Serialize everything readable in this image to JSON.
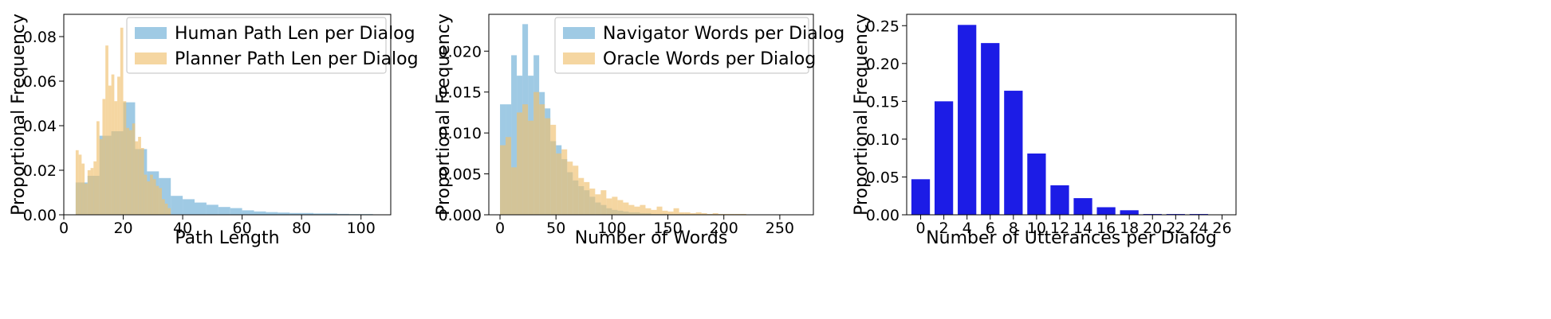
{
  "colors": {
    "blue_hist": "#6baed6",
    "orange_hist": "#f0c06e",
    "bar_blue": "#1c1ce6",
    "axis": "#000000",
    "legend_border": "#cccccc"
  },
  "chart_data": [
    {
      "type": "bar",
      "subtype": "histogram",
      "xlabel": "Path Length",
      "ylabel": "Proportional Frequency",
      "xlim": [
        0,
        110
      ],
      "ylim": [
        0,
        0.09
      ],
      "xticks": [
        0,
        20,
        40,
        60,
        80,
        100
      ],
      "yticks": [
        0.0,
        0.02,
        0.04,
        0.06,
        0.08
      ],
      "xtick_labels": [
        "0",
        "20",
        "40",
        "60",
        "80",
        "100"
      ],
      "ytick_labels": [
        "0.00",
        "0.02",
        "0.04",
        "0.06",
        "0.08"
      ],
      "legend_position": "top-right",
      "series": [
        {
          "name": "Human Path Len per Dialog",
          "color": "#6baed6",
          "bin_edges": [
            4,
            8,
            12,
            16,
            20,
            24,
            28,
            32,
            36,
            40,
            44,
            48,
            52,
            56,
            60,
            64,
            68,
            72,
            76,
            80,
            84,
            88,
            92,
            96,
            100,
            104
          ],
          "values": [
            0.0145,
            0.0175,
            0.0355,
            0.0375,
            0.0505,
            0.0295,
            0.0195,
            0.0165,
            0.0085,
            0.007,
            0.0055,
            0.0045,
            0.0035,
            0.003,
            0.002,
            0.0015,
            0.0012,
            0.001,
            0.0008,
            0.0008,
            0.0006,
            0.0006,
            0.0004,
            0.0003,
            0.0003
          ]
        },
        {
          "name": "Planner Path Len per Dialog",
          "color": "#f0c06e",
          "bin_edges": [
            4,
            5,
            6,
            7,
            8,
            9,
            10,
            11,
            12,
            13,
            14,
            15,
            16,
            17,
            18,
            19,
            20,
            21,
            22,
            23,
            24,
            25,
            26,
            27,
            28,
            29,
            30,
            31,
            32,
            33,
            34,
            35,
            36
          ],
          "values": [
            0.029,
            0.027,
            0.023,
            0.014,
            0.02,
            0.021,
            0.024,
            0.042,
            0.034,
            0.052,
            0.076,
            0.058,
            0.063,
            0.051,
            0.062,
            0.084,
            0.051,
            0.039,
            0.038,
            0.041,
            0.033,
            0.035,
            0.03,
            0.018,
            0.015,
            0.018,
            0.016,
            0.013,
            0.012,
            0.007,
            0.005,
            0.003
          ]
        }
      ]
    },
    {
      "type": "bar",
      "subtype": "histogram",
      "xlabel": "Number of Words",
      "ylabel": "Proportional Frequency",
      "xlim": [
        -10,
        280
      ],
      "ylim": [
        0,
        0.0245
      ],
      "xticks": [
        0,
        50,
        100,
        150,
        200,
        250
      ],
      "yticks": [
        0.0,
        0.005,
        0.01,
        0.015,
        0.02
      ],
      "xtick_labels": [
        "0",
        "50",
        "100",
        "150",
        "200",
        "250"
      ],
      "ytick_labels": [
        "0.000",
        "0.005",
        "0.010",
        "0.015",
        "0.020"
      ],
      "legend_position": "top-right",
      "series": [
        {
          "name": "Navigator Words per Dialog",
          "color": "#6baed6",
          "bin_edges": [
            0,
            5,
            10,
            15,
            20,
            25,
            30,
            35,
            40,
            45,
            50,
            55,
            60,
            65,
            70,
            75,
            80,
            85,
            90,
            95,
            100,
            105,
            110,
            115,
            120,
            125,
            130,
            135,
            140,
            145,
            150
          ],
          "values": [
            0.0135,
            0.0135,
            0.0195,
            0.017,
            0.0233,
            0.017,
            0.0195,
            0.015,
            0.013,
            0.009,
            0.0085,
            0.0068,
            0.0052,
            0.0042,
            0.0035,
            0.003,
            0.0022,
            0.0015,
            0.0012,
            0.0008,
            0.0006,
            0.0005,
            0.0004,
            0.0003,
            0.0003,
            0.0002,
            0.0002,
            0.0001,
            0.0001,
            0.0001
          ]
        },
        {
          "name": "Oracle Words per Dialog",
          "color": "#f0c06e",
          "bin_edges": [
            0,
            5,
            10,
            15,
            20,
            25,
            30,
            35,
            40,
            45,
            50,
            55,
            60,
            65,
            70,
            75,
            80,
            85,
            90,
            95,
            100,
            105,
            110,
            115,
            120,
            125,
            130,
            135,
            140,
            145,
            150,
            155,
            160,
            165,
            170,
            175,
            180,
            185,
            190,
            195,
            200,
            205,
            210,
            215,
            220
          ],
          "values": [
            0.0085,
            0.0095,
            0.0058,
            0.0125,
            0.0135,
            0.0115,
            0.015,
            0.0135,
            0.0118,
            0.011,
            0.0075,
            0.008,
            0.0065,
            0.006,
            0.0045,
            0.004,
            0.0032,
            0.0025,
            0.003,
            0.002,
            0.0022,
            0.0018,
            0.0015,
            0.0012,
            0.001,
            0.0012,
            0.0008,
            0.0006,
            0.001,
            0.0005,
            0.0004,
            0.0008,
            0.0003,
            0.0003,
            0.0002,
            0.0003,
            0.0002,
            0.0001,
            0.0002,
            0.0001,
            0.0001,
            0.0001,
            0.0001,
            0.0001
          ]
        }
      ]
    },
    {
      "type": "bar",
      "xlabel": "Number of Utterances per Dialog",
      "ylabel": "Proportional Frequency",
      "ylim": [
        0,
        0.265
      ],
      "yticks": [
        0.0,
        0.05,
        0.1,
        0.15,
        0.2,
        0.25
      ],
      "ytick_labels": [
        "0.00",
        "0.05",
        "0.10",
        "0.15",
        "0.20",
        "0.25"
      ],
      "categories": [
        "0",
        "2",
        "4",
        "6",
        "8",
        "10",
        "12",
        "14",
        "16",
        "18",
        "20",
        "22",
        "24",
        "26"
      ],
      "values": [
        0.047,
        0.15,
        0.251,
        0.227,
        0.164,
        0.081,
        0.039,
        0.022,
        0.01,
        0.006,
        0.001,
        0.001,
        0.001,
        0.0005
      ],
      "color": "#1c1ce6"
    }
  ]
}
